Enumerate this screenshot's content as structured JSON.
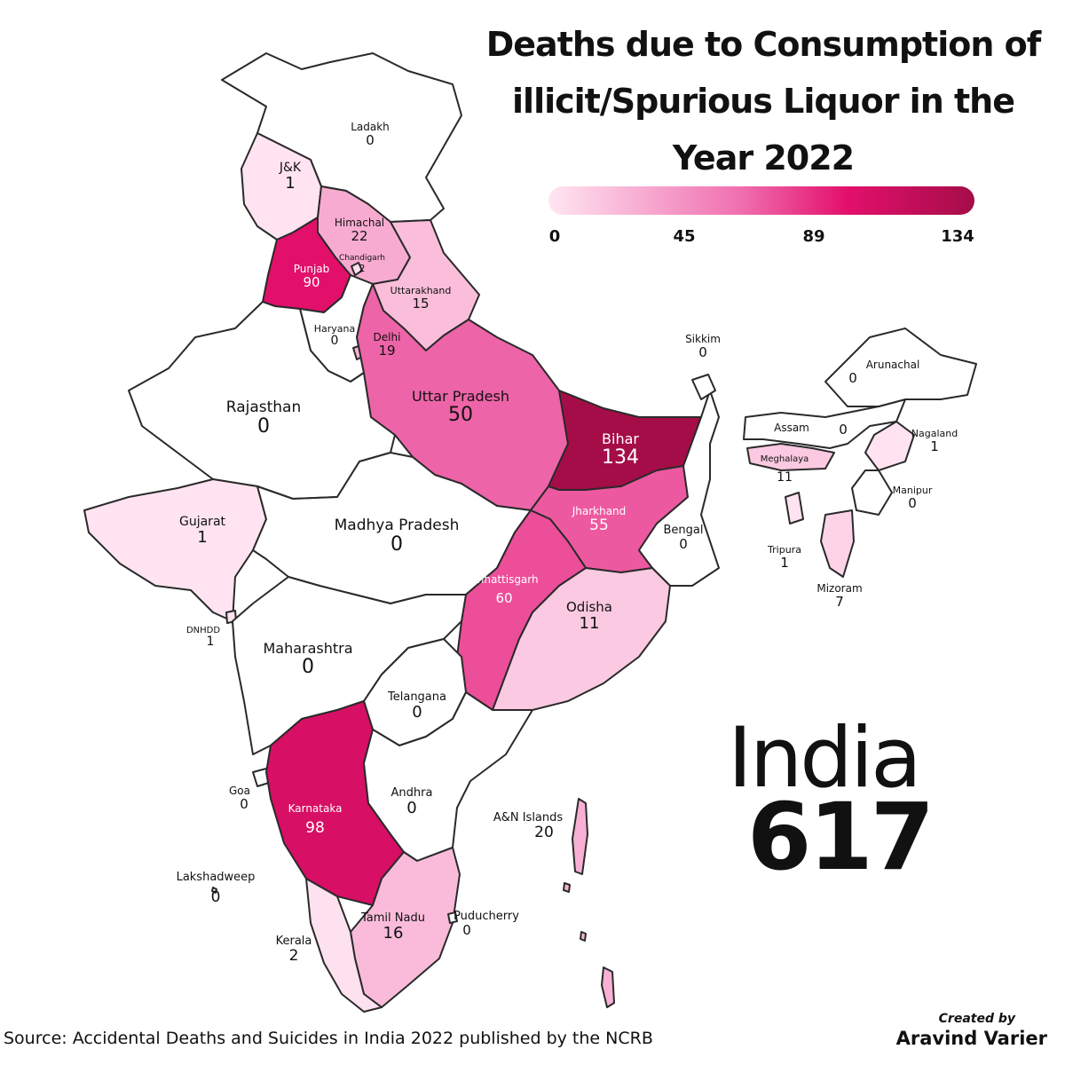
{
  "title": "Deaths due to Consumption of illicit/Spurious Liquor in the Year 2022",
  "legend": {
    "ticks": [
      "0",
      "45",
      "89",
      "134"
    ],
    "min": 0,
    "max": 134,
    "colors": [
      "#ffe6f1",
      "#f06fb0",
      "#e3106c",
      "#a50d48"
    ]
  },
  "regions": [
    {
      "key": "ladakh",
      "name": "Ladakh",
      "value": 0
    },
    {
      "key": "jk",
      "name": "J&K",
      "value": 1
    },
    {
      "key": "himachal",
      "name": "Himachal",
      "value": 22
    },
    {
      "key": "chandigarh",
      "name": "Chandigarh",
      "value": 2
    },
    {
      "key": "punjab",
      "name": "Punjab",
      "value": 90
    },
    {
      "key": "uttarakhand",
      "name": "Uttarakhand",
      "value": 15
    },
    {
      "key": "haryana",
      "name": "Haryana",
      "value": 0
    },
    {
      "key": "delhi",
      "name": "Delhi",
      "value": 19
    },
    {
      "key": "rajasthan",
      "name": "Rajasthan",
      "value": 0
    },
    {
      "key": "up",
      "name": "Uttar Pradesh",
      "value": 50
    },
    {
      "key": "bihar",
      "name": "Bihar",
      "value": 134
    },
    {
      "key": "sikkim",
      "name": "Sikkim",
      "value": 0
    },
    {
      "key": "arunachal",
      "name": "Arunachal",
      "value": 0
    },
    {
      "key": "assam",
      "name": "Assam",
      "value": 0
    },
    {
      "key": "nagaland",
      "name": "Nagaland",
      "value": 1
    },
    {
      "key": "meghalaya",
      "name": "Meghalaya",
      "value": 11
    },
    {
      "key": "manipur",
      "name": "Manipur",
      "value": 0
    },
    {
      "key": "tripura",
      "name": "Tripura",
      "value": 1
    },
    {
      "key": "mizoram",
      "name": "Mizoram",
      "value": 7
    },
    {
      "key": "gujarat",
      "name": "Gujarat",
      "value": 1
    },
    {
      "key": "mp",
      "name": "Madhya Pradesh",
      "value": 0
    },
    {
      "key": "jharkhand",
      "name": "Jharkhand",
      "value": 55
    },
    {
      "key": "bengal",
      "name": "Bengal",
      "value": 0
    },
    {
      "key": "chhattisgarh",
      "name": "Chhattisgarh",
      "value": 60
    },
    {
      "key": "odisha",
      "name": "Odisha",
      "value": 11
    },
    {
      "key": "dnhdd",
      "name": "DNHDD",
      "value": 1
    },
    {
      "key": "maharashtra",
      "name": "Maharashtra",
      "value": 0
    },
    {
      "key": "telangana",
      "name": "Telangana",
      "value": 0
    },
    {
      "key": "goa",
      "name": "Goa",
      "value": 0
    },
    {
      "key": "karnataka",
      "name": "Karnataka",
      "value": 98
    },
    {
      "key": "andhra",
      "name": "Andhra",
      "value": 0
    },
    {
      "key": "an",
      "name": "A&N Islands",
      "value": 20
    },
    {
      "key": "lakshadweep",
      "name": "Lakshadweep",
      "value": 0
    },
    {
      "key": "tamilnadu",
      "name": "Tamil Nadu",
      "value": 16
    },
    {
      "key": "puducherry",
      "name": "Puducherry",
      "value": 0
    },
    {
      "key": "kerala",
      "name": "Kerala",
      "value": 2
    }
  ],
  "total": {
    "label": "India",
    "value": "617"
  },
  "source": "Source: Accidental Deaths and Suicides in India 2022 published by the NCRB",
  "credit": {
    "by": "Created by",
    "name": "Aravind Varier"
  }
}
